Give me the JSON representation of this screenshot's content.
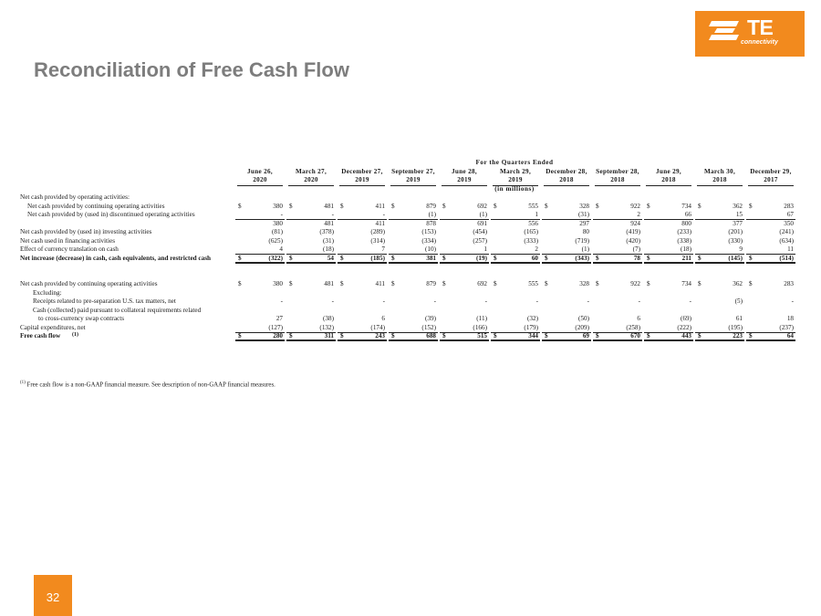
{
  "logo": {
    "brand": "TE",
    "tagline": "connectivity"
  },
  "title": "Reconciliation of Free Cash Flow",
  "table": {
    "span_header": "For the Quarters Ended",
    "columns": [
      {
        "line1": "June 26,",
        "line2": "2020"
      },
      {
        "line1": "March 27,",
        "line2": "2020"
      },
      {
        "line1": "December 27,",
        "line2": "2019"
      },
      {
        "line1": "September 27,",
        "line2": "2019"
      },
      {
        "line1": "June 28,",
        "line2": "2019"
      },
      {
        "line1": "March 29,",
        "line2": "2019"
      },
      {
        "line1": "December 28,",
        "line2": "2018"
      },
      {
        "line1": "September 28,",
        "line2": "2018"
      },
      {
        "line1": "June 29,",
        "line2": "2018"
      },
      {
        "line1": "March 30,",
        "line2": "2018"
      },
      {
        "line1": "December 29,",
        "line2": "2017"
      }
    ],
    "units": "(in millions)",
    "rows": [
      {
        "label": "Net cash provided by operating activities:",
        "indent": 0,
        "values": null
      },
      {
        "label": "Net cash provided by continuing operating activities",
        "indent": 1,
        "dollar": true,
        "values": [
          "380",
          "481",
          "411",
          "879",
          "692",
          "555",
          "328",
          "922",
          "734",
          "362",
          "283"
        ]
      },
      {
        "label": "Net cash provided by (used in) discontinued operating activities",
        "indent": 1,
        "line": "single",
        "values": [
          "-",
          "-",
          "-",
          "(1)",
          "(1)",
          "1",
          "(31)",
          "2",
          "66",
          "15",
          "67"
        ]
      },
      {
        "label": "",
        "indent": 0,
        "values": [
          "380",
          "481",
          "411",
          "878",
          "691",
          "556",
          "297",
          "924",
          "800",
          "377",
          "350"
        ]
      },
      {
        "label": "Net cash provided by (used in) investing activities",
        "indent": 0,
        "values": [
          "(81)",
          "(378)",
          "(289)",
          "(153)",
          "(454)",
          "(165)",
          "80",
          "(419)",
          "(233)",
          "(201)",
          "(241)"
        ]
      },
      {
        "label": "Net cash used in financing activities",
        "indent": 0,
        "values": [
          "(625)",
          "(31)",
          "(314)",
          "(334)",
          "(257)",
          "(333)",
          "(719)",
          "(420)",
          "(338)",
          "(330)",
          "(634)"
        ]
      },
      {
        "label": "Effect of currency translation on cash",
        "indent": 0,
        "line": "single",
        "values": [
          "4",
          "(18)",
          "7",
          "(10)",
          "1",
          "2",
          "(1)",
          "(7)",
          "(18)",
          "9",
          "11"
        ]
      },
      {
        "label": "Net increase (decrease) in cash, cash equivalents, and restricted cash",
        "indent": 0,
        "bold": true,
        "dollar": true,
        "line": "double",
        "values": [
          "(322)",
          "54",
          "(185)",
          "381",
          "(19)",
          "60",
          "(343)",
          "78",
          "211",
          "(145)",
          "(514)"
        ]
      },
      {
        "label": "",
        "indent": 0,
        "values": null
      },
      {
        "label": "",
        "indent": 0,
        "values": null
      },
      {
        "label": "Net cash provided by continuing operating activities",
        "indent": 0,
        "dollar": true,
        "values": [
          "380",
          "481",
          "411",
          "879",
          "692",
          "555",
          "328",
          "922",
          "734",
          "362",
          "283"
        ]
      },
      {
        "label": "Excluding:",
        "indent": 2,
        "values": null
      },
      {
        "label": "Receipts related to pre-separation U.S. tax matters, net",
        "indent": 2,
        "values": [
          "-",
          "-",
          "-",
          "-",
          "-",
          "-",
          "-",
          "-",
          "-",
          "(5)",
          "-"
        ]
      },
      {
        "label": "Cash (collected) paid pursuant to collateral requirements related",
        "indent": 2,
        "values": null
      },
      {
        "label": "to cross-currency swap contracts",
        "indent": 3,
        "values": [
          "27",
          "(38)",
          "6",
          "(39)",
          "(11)",
          "(32)",
          "(50)",
          "6",
          "(69)",
          "61",
          "18"
        ]
      },
      {
        "label": "Capital expenditures, net",
        "indent": 0,
        "line": "single",
        "values": [
          "(127)",
          "(132)",
          "(174)",
          "(152)",
          "(166)",
          "(179)",
          "(209)",
          "(258)",
          "(222)",
          "(195)",
          "(237)"
        ]
      },
      {
        "label": "Free cash flow",
        "sup": "(1)",
        "indent": 0,
        "bold": true,
        "dollar": true,
        "line": "double",
        "values": [
          "280",
          "311",
          "243",
          "688",
          "515",
          "344",
          "69",
          "670",
          "443",
          "223",
          "64"
        ]
      }
    ]
  },
  "footnote": {
    "marker": "(1)",
    "text": "Free cash flow is a non-GAAP financial measure. See description of non-GAAP financial measures."
  },
  "page_number": "32",
  "colors": {
    "accent": "#f28a1e",
    "title": "#7d7d7d"
  }
}
